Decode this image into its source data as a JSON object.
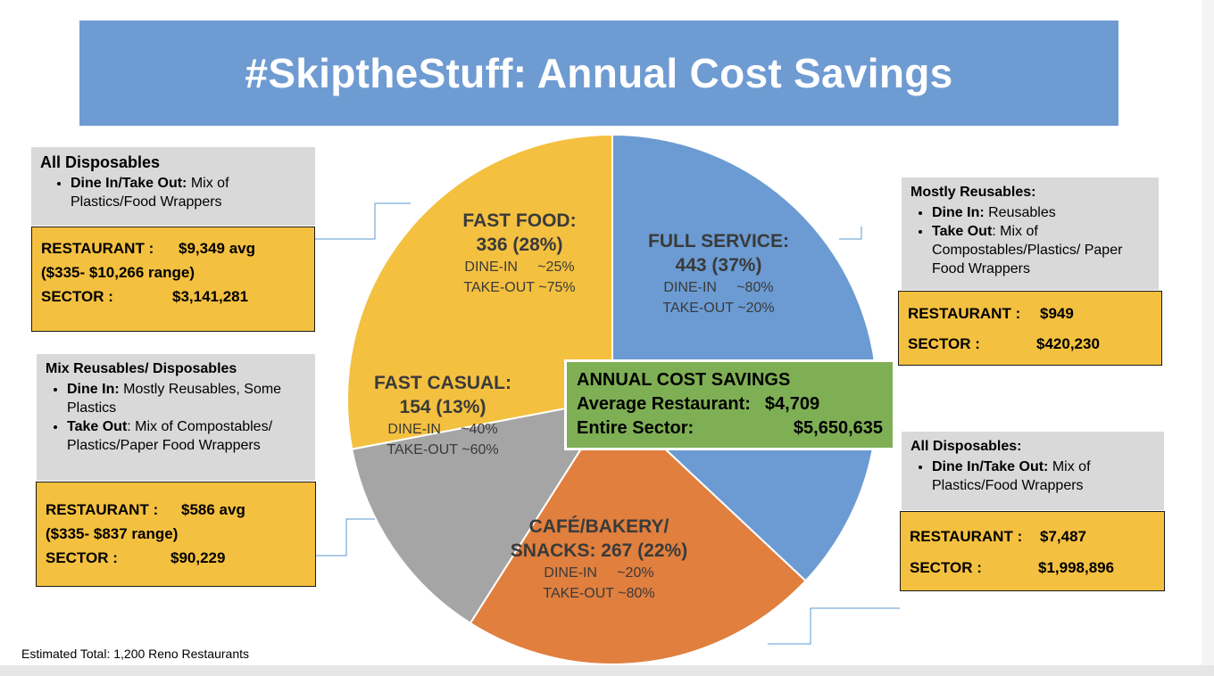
{
  "title": "#SkiptheStuff: Annual Cost Savings",
  "chart_data": {
    "type": "pie",
    "title": "#SkiptheStuff: Annual Cost Savings",
    "slices": [
      {
        "name": "FULL SERVICE:",
        "count": 443,
        "percent": 37,
        "color": "#6b9bd2",
        "dine_in": "DINE-IN     ~80%",
        "take_out": "TAKE-OUT ~20%"
      },
      {
        "name": "CAFÉ/BAKERY/ SNACKS:",
        "count": 267,
        "percent": 22,
        "color": "#e07f3e",
        "dine_in": "DINE-IN     ~20%",
        "take_out": "TAKE-OUT ~80%"
      },
      {
        "name": "FAST CASUAL:",
        "count": 154,
        "percent": 13,
        "color": "#a5a5a5",
        "dine_in": "DINE-IN     ~40%",
        "take_out": "TAKE-OUT ~60%"
      },
      {
        "name": "FAST FOOD:",
        "count": 336,
        "percent": 28,
        "color": "#f4c040",
        "dine_in": "DINE-IN     ~25%",
        "take_out": "TAKE-OUT ~75%"
      }
    ]
  },
  "labels": {
    "full_service": {
      "line1": "FULL SERVICE:",
      "line2": "443 (37%)",
      "dine": "DINE-IN     ~80%",
      "take": "TAKE-OUT ~20%"
    },
    "fast_food": {
      "line1": "FAST FOOD:",
      "line2": "336 (28%)",
      "dine": "DINE-IN     ~25%",
      "take": "TAKE-OUT ~75%"
    },
    "fast_casual": {
      "line1": "FAST CASUAL:",
      "line2": "154 (13%)",
      "dine": "DINE-IN     ~40%",
      "take": "TAKE-OUT ~60%"
    },
    "cafe": {
      "line1": "CAFÉ/BAKERY/",
      "line2": "SNACKS: 267 (22%)",
      "dine": "DINE-IN     ~20%",
      "take": "TAKE-OUT ~80%"
    }
  },
  "center": {
    "heading": "ANNUAL COST SAVINGS",
    "avg_label": "Average Restaurant:",
    "avg_value": "$4,709",
    "sector_label": "Entire Sector:",
    "sector_value": "$5,650,635"
  },
  "fast_food_info": {
    "heading": "All Disposables",
    "b1_bold": "Dine In/Take Out:",
    "b1_text": " Mix of Plastics/Food Wrappers",
    "restaurant_label": "RESTAURANT :",
    "restaurant_value": "$9,349  avg",
    "range": "($335- $10,266 range)",
    "sector_label": "SECTOR :",
    "sector_value": "$3,141,281"
  },
  "fast_casual_info": {
    "heading": "Mix Reusables/ Disposables",
    "b1_bold": "Dine In:",
    "b1_text": "  Mostly Reusables, Some Plastics",
    "b2_bold": "Take Out",
    "b2_text": ": Mix of Compostables/ Plastics/Paper Food Wrappers",
    "restaurant_label": "RESTAURANT :",
    "restaurant_value": "$586  avg",
    "range": "($335- $837 range)",
    "sector_label": "SECTOR :",
    "sector_value": "$90,229"
  },
  "full_service_info": {
    "heading": "Mostly Reusables:",
    "b1_bold": "Dine In:",
    "b1_text": " Reusables",
    "b2_bold": "Take Out",
    "b2_text": ": Mix of Compostables/Plastics/ Paper Food Wrappers",
    "restaurant_label": "RESTAURANT :",
    "restaurant_value": "$949",
    "sector_label": "SECTOR :",
    "sector_value": "$420,230"
  },
  "cafe_info": {
    "heading": "All Disposables:",
    "b1_bold": "Dine In/Take Out:",
    "b1_text": " Mix of Plastics/Food Wrappers",
    "restaurant_label": "RESTAURANT :",
    "restaurant_value": "$7,487",
    "sector_label": "SECTOR :",
    "sector_value": "$1,998,896"
  },
  "footnote": "Estimated Total: 1,200 Reno Restaurants"
}
